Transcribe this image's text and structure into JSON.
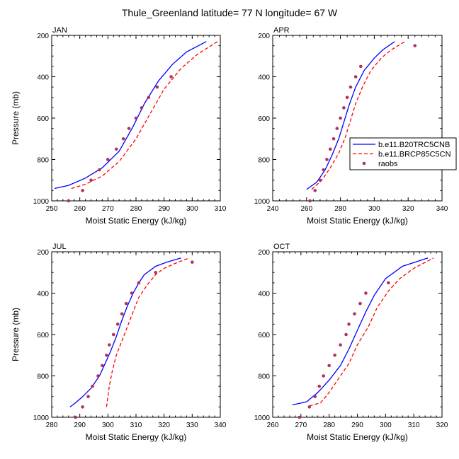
{
  "title": "Thule_Greenland  latitude= 77 N longitude= 67 W",
  "legend": {
    "placement": "right of APR panel",
    "entries": [
      {
        "label": "b.e11.B20TRC5CNB",
        "style": "solid",
        "color": "#0000ff"
      },
      {
        "label": "b.e11.BRCP85C5CN",
        "style": "dashed",
        "color": "#ff0000"
      },
      {
        "label": "raobs",
        "style": "marker",
        "color": "#b03060"
      }
    ]
  },
  "chart_data": [
    {
      "type": "line",
      "panel": "JAN",
      "xlabel": "Moist Static Energy (kJ/kg)",
      "ylabel": "Pressure (mb)",
      "xlim": [
        250,
        310
      ],
      "ylim": [
        1000,
        200
      ],
      "y_reversed": true,
      "xticks": [
        250,
        260,
        270,
        280,
        290,
        300,
        310
      ],
      "yticks": [
        200,
        400,
        600,
        800,
        1000
      ],
      "series": [
        {
          "name": "b.e11.B20TRC5CNB",
          "points": [
            [
              251,
              940
            ],
            [
              256,
              925
            ],
            [
              262,
              890
            ],
            [
              268,
              840
            ],
            [
              274,
              760
            ],
            [
              279,
              640
            ],
            [
              283,
              530
            ],
            [
              288,
              420
            ],
            [
              293,
              340
            ],
            [
              298,
              280
            ],
            [
              305,
              230
            ]
          ]
        },
        {
          "name": "b.e11.BRCP85C5CN",
          "points": [
            [
              257,
              940
            ],
            [
              262,
              920
            ],
            [
              268,
              880
            ],
            [
              274,
              810
            ],
            [
              280,
              700
            ],
            [
              285,
              580
            ],
            [
              290,
              460
            ],
            [
              296,
              360
            ],
            [
              302,
              290
            ],
            [
              309,
              230
            ]
          ]
        },
        {
          "name": "raobs",
          "points": [
            [
              256,
              1000
            ],
            [
              261,
              950
            ],
            [
              264,
              900
            ],
            [
              267,
              850
            ],
            [
              270,
              800
            ],
            [
              273,
              750
            ],
            [
              275.5,
              700
            ],
            [
              277.5,
              650
            ],
            [
              280,
              600
            ],
            [
              282,
              550
            ],
            [
              284.5,
              500
            ],
            [
              287.5,
              450
            ],
            [
              292.5,
              400
            ]
          ]
        }
      ]
    },
    {
      "type": "line",
      "panel": "APR",
      "xlabel": "Moist Static Energy (kJ/kg)",
      "ylabel": "Pressure (mb)",
      "xlim": [
        240,
        340
      ],
      "ylim": [
        1000,
        200
      ],
      "y_reversed": true,
      "xticks": [
        240,
        260,
        280,
        300,
        320,
        340
      ],
      "yticks": [
        200,
        400,
        600,
        800,
        1000
      ],
      "series": [
        {
          "name": "b.e11.B20TRC5CNB",
          "points": [
            [
              260,
              945
            ],
            [
              266,
              910
            ],
            [
              271,
              850
            ],
            [
              275,
              780
            ],
            [
              279,
              700
            ],
            [
              282,
              620
            ],
            [
              285,
              540
            ],
            [
              289,
              450
            ],
            [
              294,
              370
            ],
            [
              300,
              310
            ],
            [
              305,
              270
            ],
            [
              312,
              230
            ]
          ]
        },
        {
          "name": "b.e11.BRCP85C5CN",
          "points": [
            [
              263,
              945
            ],
            [
              269,
              900
            ],
            [
              274,
              840
            ],
            [
              279,
              770
            ],
            [
              283,
              690
            ],
            [
              286,
              610
            ],
            [
              289,
              530
            ],
            [
              293,
              450
            ],
            [
              298,
              370
            ],
            [
              304,
              310
            ],
            [
              310,
              270
            ],
            [
              318,
              230
            ]
          ]
        },
        {
          "name": "raobs",
          "points": [
            [
              262,
              1000
            ],
            [
              265,
              950
            ],
            [
              268,
              900
            ],
            [
              270,
              850
            ],
            [
              272,
              800
            ],
            [
              274,
              750
            ],
            [
              276,
              700
            ],
            [
              278,
              650
            ],
            [
              280,
              600
            ],
            [
              282,
              550
            ],
            [
              284,
              500
            ],
            [
              286,
              450
            ],
            [
              289,
              400
            ],
            [
              292,
              350
            ],
            [
              324,
              250
            ]
          ]
        }
      ]
    },
    {
      "type": "line",
      "panel": "JUL",
      "xlabel": "Moist Static Energy (kJ/kg)",
      "ylabel": "Pressure (mb)",
      "xlim": [
        280,
        340
      ],
      "ylim": [
        1000,
        200
      ],
      "y_reversed": true,
      "xticks": [
        280,
        290,
        300,
        310,
        320,
        330,
        340
      ],
      "yticks": [
        200,
        400,
        600,
        800,
        1000
      ],
      "series": [
        {
          "name": "b.e11.B20TRC5CNB",
          "points": [
            [
              286.5,
              950
            ],
            [
              288.5,
              930
            ],
            [
              291,
              900
            ],
            [
              294,
              860
            ],
            [
              297,
              800
            ],
            [
              299,
              740
            ],
            [
              301,
              680
            ],
            [
              303,
              610
            ],
            [
              305,
              530
            ],
            [
              307,
              460
            ],
            [
              309,
              400
            ],
            [
              311,
              350
            ],
            [
              313,
              310
            ],
            [
              317,
              270
            ],
            [
              321,
              250
            ],
            [
              326,
              230
            ]
          ]
        },
        {
          "name": "b.e11.BRCP85C5CN",
          "points": [
            [
              299.5,
              950
            ],
            [
              300,
              900
            ],
            [
              300.5,
              850
            ],
            [
              301.5,
              780
            ],
            [
              303,
              700
            ],
            [
              305,
              630
            ],
            [
              307,
              560
            ],
            [
              309,
              490
            ],
            [
              311,
              420
            ],
            [
              314,
              360
            ],
            [
              317,
              310
            ],
            [
              320,
              280
            ],
            [
              325,
              250
            ],
            [
              329,
              230
            ]
          ]
        },
        {
          "name": "raobs",
          "points": [
            [
              288.5,
              1000
            ],
            [
              291,
              950
            ],
            [
              293,
              900
            ],
            [
              294.5,
              850
            ],
            [
              296.5,
              800
            ],
            [
              298,
              750
            ],
            [
              299.5,
              700
            ],
            [
              300.5,
              650
            ],
            [
              302,
              600
            ],
            [
              303.5,
              550
            ],
            [
              305,
              500
            ],
            [
              306.5,
              450
            ],
            [
              308.5,
              400
            ],
            [
              311,
              350
            ],
            [
              317,
              300
            ],
            [
              330,
              250
            ]
          ]
        }
      ]
    },
    {
      "type": "line",
      "panel": "OCT",
      "xlabel": "Moist Static Energy (kJ/kg)",
      "ylabel": "Pressure (mb)",
      "xlim": [
        260,
        320
      ],
      "ylim": [
        1000,
        200
      ],
      "y_reversed": true,
      "xticks": [
        260,
        270,
        280,
        290,
        300,
        310,
        320
      ],
      "yticks": [
        200,
        400,
        600,
        800,
        1000
      ],
      "series": [
        {
          "name": "b.e11.B20TRC5CNB",
          "points": [
            [
              267,
              940
            ],
            [
              272,
              925
            ],
            [
              276,
              880
            ],
            [
              280,
              820
            ],
            [
              284,
              750
            ],
            [
              287,
              670
            ],
            [
              290,
              580
            ],
            [
              293,
              490
            ],
            [
              296,
              410
            ],
            [
              300,
              330
            ],
            [
              306,
              270
            ],
            [
              315,
              230
            ]
          ]
        },
        {
          "name": "b.e11.BRCP85C5CN",
          "points": [
            [
              273,
              945
            ],
            [
              277,
              930
            ],
            [
              280,
              880
            ],
            [
              283,
              820
            ],
            [
              287,
              740
            ],
            [
              290,
              650
            ],
            [
              294,
              560
            ],
            [
              297,
              470
            ],
            [
              301,
              390
            ],
            [
              305,
              330
            ],
            [
              310,
              280
            ],
            [
              317,
              230
            ]
          ]
        },
        {
          "name": "raobs",
          "points": [
            [
              269.5,
              1000
            ],
            [
              273,
              950
            ],
            [
              275,
              900
            ],
            [
              276.5,
              850
            ],
            [
              278,
              800
            ],
            [
              280,
              750
            ],
            [
              282,
              700
            ],
            [
              284,
              650
            ],
            [
              286,
              600
            ],
            [
              287,
              550
            ],
            [
              289,
              500
            ],
            [
              291,
              450
            ],
            [
              293,
              400
            ],
            [
              301,
              350
            ]
          ]
        }
      ]
    }
  ]
}
